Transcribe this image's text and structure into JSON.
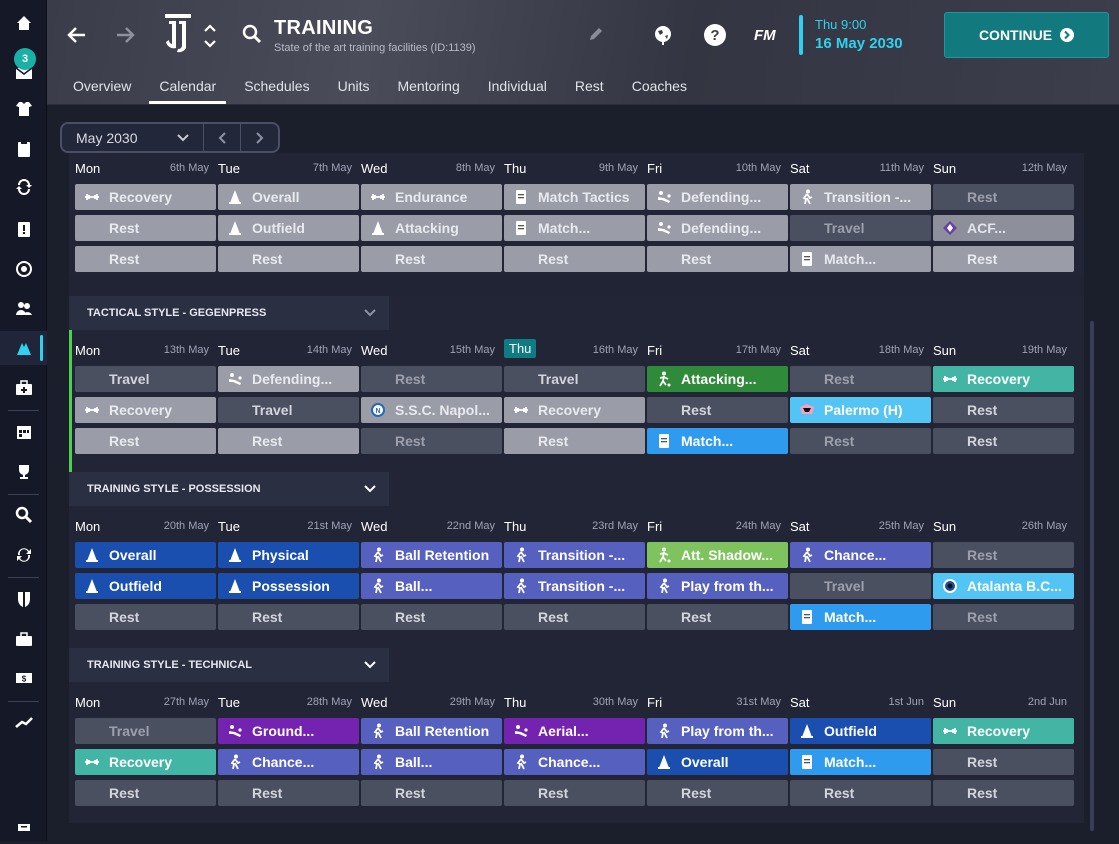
{
  "sidebar": {
    "badge": "3",
    "items": [
      "home",
      "inbox",
      "squad",
      "notes",
      "transfers",
      "dynamics",
      "scouting",
      "staff",
      "training",
      "medical",
      "schedule",
      "competitions",
      "search",
      "refresh",
      "club",
      "finances",
      "shortlist",
      "data"
    ]
  },
  "header": {
    "title": "TRAINING",
    "subtitle": "State of the art training facilities (ID:1139)",
    "fm_logo": "FM",
    "time": "Thu 9:00",
    "date": "16 May 2030",
    "continue_label": "CONTINUE"
  },
  "tabs": [
    "Overview",
    "Calendar",
    "Schedules",
    "Units",
    "Mentoring",
    "Individual",
    "Rest",
    "Coaches"
  ],
  "active_tab": "Calendar",
  "month_selector": {
    "label": "May 2030"
  },
  "colors": {
    "accent": "#2ed2ee",
    "continue": "#127a7e",
    "current_week": "#4fcf4f"
  },
  "weeks": [
    {
      "header": "",
      "days": [
        {
          "day": "Mon",
          "date": "6th May"
        },
        {
          "day": "Tue",
          "date": "7th May"
        },
        {
          "day": "Wed",
          "date": "8th May"
        },
        {
          "day": "Thu",
          "date": "9th May"
        },
        {
          "day": "Fri",
          "date": "10th May"
        },
        {
          "day": "Sat",
          "date": "11th May"
        },
        {
          "day": "Sun",
          "date": "12th May"
        }
      ],
      "rows": [
        [
          "Recovery",
          "Overall",
          "Endurance",
          "Match Tactics",
          "Defending...",
          "Transition -...",
          "Rest"
        ],
        [
          "Rest",
          "Outfield",
          "Attacking",
          "Match...",
          "Defending...",
          "Travel",
          "ACF..."
        ],
        [
          "Rest",
          "Rest",
          "Rest",
          "Rest",
          "Rest",
          "Match...",
          "Rest"
        ]
      ]
    },
    {
      "header": "TACTICAL STYLE - GEGENPRESS",
      "days": [
        {
          "day": "Mon",
          "date": "13th May"
        },
        {
          "day": "Tue",
          "date": "14th May"
        },
        {
          "day": "Wed",
          "date": "15th May"
        },
        {
          "day": "Thu",
          "date": "16th May"
        },
        {
          "day": "Fri",
          "date": "17th May"
        },
        {
          "day": "Sat",
          "date": "18th May"
        },
        {
          "day": "Sun",
          "date": "19th May"
        }
      ],
      "rows": [
        [
          "Travel",
          "Defending...",
          "Rest",
          "Travel",
          "Attacking...",
          "Rest",
          "Recovery"
        ],
        [
          "Recovery",
          "Travel",
          "S.S.C. Napol...",
          "Recovery",
          "Rest",
          "Palermo (H)",
          "Rest"
        ],
        [
          "Rest",
          "Rest",
          "Rest",
          "Rest",
          "Match...",
          "Rest",
          "Rest"
        ]
      ]
    },
    {
      "header": "TRAINING STYLE - POSSESSION",
      "days": [
        {
          "day": "Mon",
          "date": "20th May"
        },
        {
          "day": "Tue",
          "date": "21st May"
        },
        {
          "day": "Wed",
          "date": "22nd May"
        },
        {
          "day": "Thu",
          "date": "23rd May"
        },
        {
          "day": "Fri",
          "date": "24th May"
        },
        {
          "day": "Sat",
          "date": "25th May"
        },
        {
          "day": "Sun",
          "date": "26th May"
        }
      ],
      "rows": [
        [
          "Overall",
          "Physical",
          "Ball Retention",
          "Transition -...",
          "Att. Shadow...",
          "Chance...",
          "Rest"
        ],
        [
          "Outfield",
          "Possession",
          "Ball...",
          "Transition -...",
          "Play from th...",
          "Travel",
          "Atalanta B.C..."
        ],
        [
          "Rest",
          "Rest",
          "Rest",
          "Rest",
          "Rest",
          "Match...",
          "Rest"
        ]
      ]
    },
    {
      "header": "TRAINING STYLE - TECHNICAL",
      "days": [
        {
          "day": "Mon",
          "date": "27th May"
        },
        {
          "day": "Tue",
          "date": "28th May"
        },
        {
          "day": "Wed",
          "date": "29th May"
        },
        {
          "day": "Thu",
          "date": "30th May"
        },
        {
          "day": "Fri",
          "date": "31st May"
        },
        {
          "day": "Sat",
          "date": "1st Jun"
        },
        {
          "day": "Sun",
          "date": "2nd Jun"
        }
      ],
      "rows": [
        [
          "Travel",
          "Ground...",
          "Ball Retention",
          "Aerial...",
          "Play from th...",
          "Outfield",
          "Recovery"
        ],
        [
          "Recovery",
          "Chance...",
          "Ball...",
          "Chance...",
          "Overall",
          "Match...",
          "Rest"
        ],
        [
          "Rest",
          "Rest",
          "Rest",
          "Rest",
          "Rest",
          "Rest",
          "Rest"
        ]
      ]
    }
  ],
  "today_label": "Thu"
}
